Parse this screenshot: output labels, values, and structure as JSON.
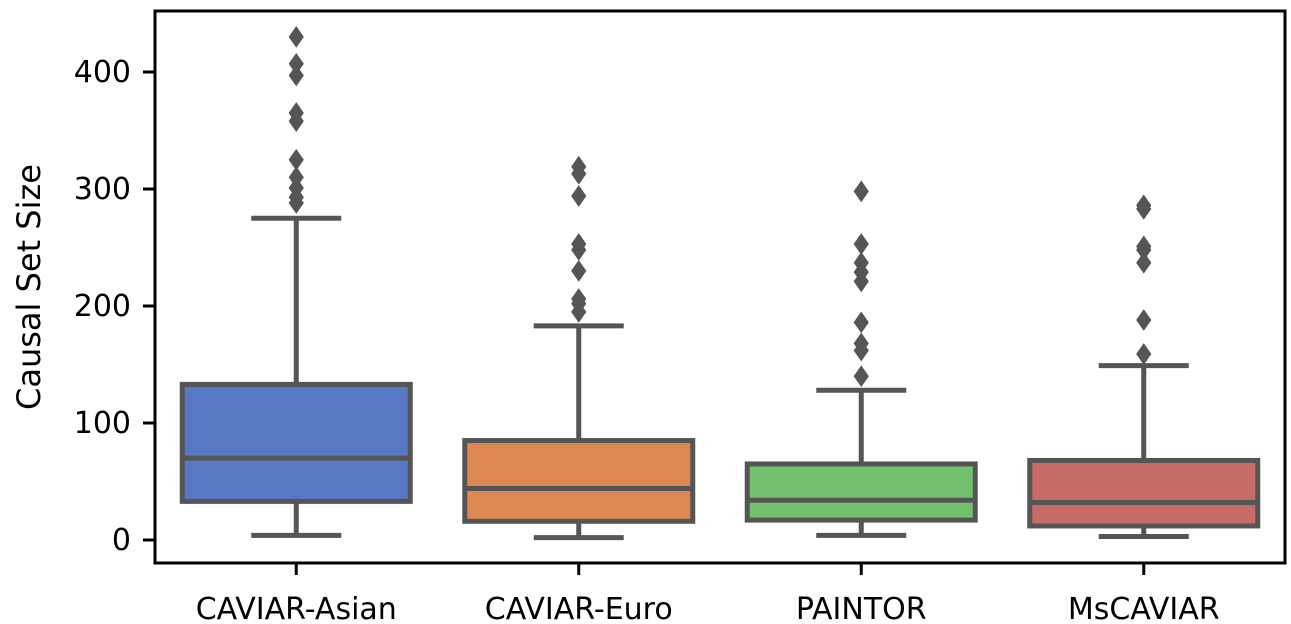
{
  "chart_data": {
    "type": "box",
    "title": "",
    "xlabel": "",
    "ylabel": "Causal Set Size",
    "ylim": [
      -20,
      450
    ],
    "yticks": [
      0,
      100,
      200,
      300,
      400
    ],
    "grid": false,
    "legend": "none",
    "categories": [
      "CAVIAR-Asian",
      "CAVIAR-Euro",
      "PAINTOR",
      "MsCAVIAR"
    ],
    "colors": [
      "#5778C2",
      "#DD8853",
      "#73C06F",
      "#C76B68"
    ],
    "edge_color": "#555555",
    "series": [
      {
        "category": "CAVIAR-Asian",
        "whisker_low": 4,
        "q1": 33,
        "median": 70,
        "q3": 133,
        "whisker_high": 275,
        "outliers": [
          288,
          293,
          301,
          310,
          325,
          358,
          365,
          397,
          407,
          430
        ]
      },
      {
        "category": "CAVIAR-Euro",
        "whisker_low": 2,
        "q1": 16,
        "median": 44,
        "q3": 85,
        "whisker_high": 183,
        "outliers": [
          195,
          202,
          206,
          230,
          248,
          253,
          294,
          313,
          319
        ]
      },
      {
        "category": "PAINTOR",
        "whisker_low": 4,
        "q1": 17,
        "median": 34,
        "q3": 65,
        "whisker_high": 128,
        "outliers": [
          140,
          162,
          168,
          186,
          221,
          229,
          237,
          253,
          298
        ]
      },
      {
        "category": "MsCAVIAR",
        "whisker_low": 3,
        "q1": 12,
        "median": 32,
        "q3": 68,
        "whisker_high": 149,
        "outliers": [
          159,
          188,
          237,
          248,
          251,
          283,
          286
        ]
      }
    ]
  }
}
